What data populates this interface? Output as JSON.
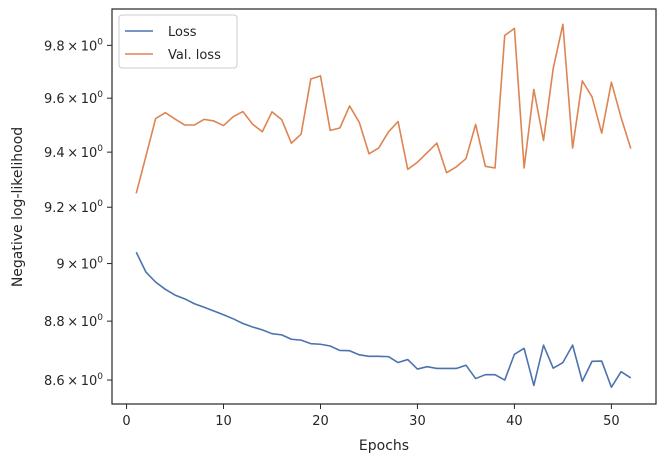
{
  "chart_data": {
    "type": "line",
    "title": "",
    "xlabel": "Epochs",
    "ylabel": "Negative log-likelihood",
    "yscale": "log",
    "xlim": [
      -1.5,
      54.6
    ],
    "ylim": [
      8.52,
      9.94
    ],
    "xticks": [
      0,
      10,
      20,
      30,
      40,
      50
    ],
    "xtick_labels": [
      "0",
      "10",
      "20",
      "30",
      "40",
      "50"
    ],
    "yticks": [
      8.6,
      8.8,
      9.0,
      9.2,
      9.4,
      9.6,
      9.8
    ],
    "ytick_labels": [
      {
        "mantissa": "8.6",
        "times": "×",
        "base": "10",
        "exp": "0"
      },
      {
        "mantissa": "8.8",
        "times": "×",
        "base": "10",
        "exp": "0"
      },
      {
        "mantissa": "9",
        "times": "×",
        "base": "10",
        "exp": "0"
      },
      {
        "mantissa": "9.2",
        "times": "×",
        "base": "10",
        "exp": "0"
      },
      {
        "mantissa": "9.4",
        "times": "×",
        "base": "10",
        "exp": "0"
      },
      {
        "mantissa": "9.6",
        "times": "×",
        "base": "10",
        "exp": "0"
      },
      {
        "mantissa": "9.8",
        "times": "×",
        "base": "10",
        "exp": "0"
      }
    ],
    "legend_position": "top-left",
    "x": [
      1,
      2,
      3,
      4,
      5,
      6,
      7,
      8,
      9,
      10,
      11,
      12,
      13,
      14,
      15,
      16,
      17,
      18,
      19,
      20,
      21,
      22,
      23,
      24,
      25,
      26,
      27,
      28,
      29,
      30,
      31,
      32,
      33,
      34,
      35,
      36,
      37,
      38,
      39,
      40,
      41,
      42,
      43,
      44,
      45,
      46,
      47,
      48,
      49,
      50,
      51,
      52
    ],
    "series": [
      {
        "name": "Loss",
        "color": "#4c72b0",
        "values": [
          9.04,
          8.97,
          8.935,
          8.91,
          8.89,
          8.877,
          8.86,
          8.848,
          8.835,
          8.822,
          8.808,
          8.792,
          8.78,
          8.77,
          8.757,
          8.753,
          8.738,
          8.735,
          8.723,
          8.721,
          8.715,
          8.7,
          8.699,
          8.685,
          8.68,
          8.68,
          8.679,
          8.659,
          8.669,
          8.637,
          8.645,
          8.639,
          8.639,
          8.639,
          8.65,
          8.605,
          8.618,
          8.618,
          8.6,
          8.687,
          8.707,
          8.582,
          8.718,
          8.64,
          8.659,
          8.718,
          8.596,
          8.663,
          8.664,
          8.576,
          8.628,
          8.607
        ]
      },
      {
        "name": "Val. loss",
        "color": "#dd8452",
        "values": [
          9.25,
          9.385,
          9.524,
          9.546,
          9.522,
          9.5,
          9.5,
          9.521,
          9.515,
          9.498,
          9.531,
          9.55,
          9.503,
          9.475,
          9.549,
          9.52,
          9.433,
          9.466,
          9.672,
          9.684,
          9.48,
          9.489,
          9.571,
          9.51,
          9.394,
          9.415,
          9.474,
          9.513,
          9.337,
          9.363,
          9.398,
          9.433,
          9.325,
          9.346,
          9.376,
          9.502,
          9.348,
          9.342,
          9.838,
          9.865,
          9.342,
          9.633,
          9.443,
          9.712,
          9.881,
          9.415,
          9.665,
          9.605,
          9.47,
          9.66,
          9.528,
          9.413
        ]
      }
    ]
  }
}
